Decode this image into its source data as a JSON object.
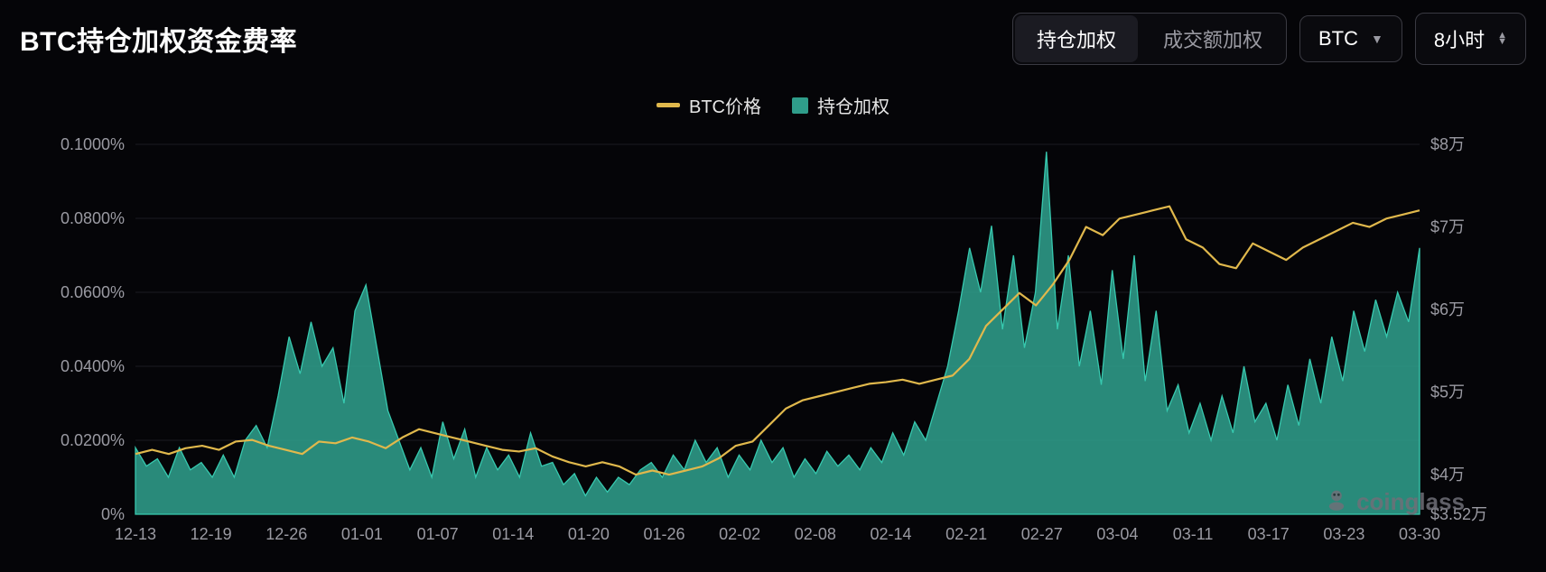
{
  "header": {
    "title": "BTC持仓加权资金费率"
  },
  "controls": {
    "segmented": {
      "option_a": "持仓加权",
      "option_b": "成交额加权",
      "active": "a"
    },
    "coin_select": {
      "value": "BTC"
    },
    "interval_select": {
      "value": "8小时"
    }
  },
  "legend": {
    "price": {
      "label": "BTC价格",
      "color": "#e0b84c"
    },
    "funding": {
      "label": "持仓加权",
      "color": "#2f9d8a"
    }
  },
  "chart": {
    "type": "area+line",
    "background_color": "#050508",
    "grid_color": "#1a1a22",
    "axis_label_color": "#9a9aa2",
    "axis_fontsize": 18,
    "x_labels": [
      "12-13",
      "12-19",
      "12-26",
      "01-01",
      "01-07",
      "01-14",
      "01-20",
      "01-26",
      "02-02",
      "02-08",
      "02-14",
      "02-21",
      "02-27",
      "03-04",
      "03-11",
      "03-17",
      "03-23",
      "03-30"
    ],
    "left_axis": {
      "min": 0,
      "max": 0.1,
      "step": 0.02,
      "format": "percent4",
      "ticks": [
        "0%",
        "0.0200%",
        "0.0400%",
        "0.0600%",
        "0.0800%",
        "0.1000%"
      ]
    },
    "right_axis": {
      "min": 3.52,
      "max": 8.0,
      "ticks_vals": [
        3.52,
        4,
        5,
        6,
        7,
        8
      ],
      "ticks": [
        "$3.52万",
        "$4万",
        "$5万",
        "$6万",
        "$7万",
        "$8万"
      ]
    },
    "line_series": {
      "color": "#e0b84c",
      "width": 2.2,
      "values": [
        4.25,
        4.3,
        4.25,
        4.32,
        4.35,
        4.3,
        4.4,
        4.42,
        4.35,
        4.3,
        4.25,
        4.4,
        4.38,
        4.45,
        4.4,
        4.32,
        4.45,
        4.55,
        4.5,
        4.45,
        4.4,
        4.35,
        4.3,
        4.28,
        4.32,
        4.22,
        4.15,
        4.1,
        4.15,
        4.1,
        4.0,
        4.05,
        4.0,
        4.05,
        4.1,
        4.2,
        4.35,
        4.4,
        4.6,
        4.8,
        4.9,
        4.95,
        5.0,
        5.05,
        5.1,
        5.12,
        5.15,
        5.1,
        5.15,
        5.2,
        5.4,
        5.8,
        6.0,
        6.2,
        6.05,
        6.3,
        6.6,
        7.0,
        6.9,
        7.1,
        7.15,
        7.2,
        7.25,
        6.85,
        6.75,
        6.55,
        6.5,
        6.8,
        6.7,
        6.6,
        6.75,
        6.85,
        6.95,
        7.05,
        7.0,
        7.1,
        7.15,
        7.2
      ]
    },
    "area_series": {
      "fill_color": "#2f9d8a",
      "fill_opacity": 0.88,
      "stroke_color": "#37c9af",
      "stroke_width": 1.3,
      "values": [
        0.018,
        0.013,
        0.015,
        0.01,
        0.018,
        0.012,
        0.014,
        0.01,
        0.016,
        0.01,
        0.02,
        0.024,
        0.018,
        0.032,
        0.048,
        0.038,
        0.052,
        0.04,
        0.045,
        0.03,
        0.055,
        0.062,
        0.045,
        0.028,
        0.02,
        0.012,
        0.018,
        0.01,
        0.025,
        0.015,
        0.023,
        0.01,
        0.018,
        0.012,
        0.016,
        0.01,
        0.022,
        0.013,
        0.014,
        0.008,
        0.011,
        0.005,
        0.01,
        0.006,
        0.01,
        0.008,
        0.012,
        0.014,
        0.01,
        0.016,
        0.012,
        0.02,
        0.014,
        0.018,
        0.01,
        0.016,
        0.012,
        0.02,
        0.014,
        0.018,
        0.01,
        0.015,
        0.011,
        0.017,
        0.013,
        0.016,
        0.012,
        0.018,
        0.014,
        0.022,
        0.016,
        0.025,
        0.02,
        0.03,
        0.04,
        0.055,
        0.072,
        0.06,
        0.078,
        0.05,
        0.07,
        0.045,
        0.06,
        0.098,
        0.05,
        0.07,
        0.04,
        0.055,
        0.035,
        0.066,
        0.042,
        0.07,
        0.036,
        0.055,
        0.028,
        0.035,
        0.022,
        0.03,
        0.02,
        0.032,
        0.022,
        0.04,
        0.025,
        0.03,
        0.02,
        0.035,
        0.024,
        0.042,
        0.03,
        0.048,
        0.036,
        0.055,
        0.044,
        0.058,
        0.048,
        0.06,
        0.052,
        0.072
      ]
    }
  },
  "watermark": {
    "text": "coinglass"
  }
}
